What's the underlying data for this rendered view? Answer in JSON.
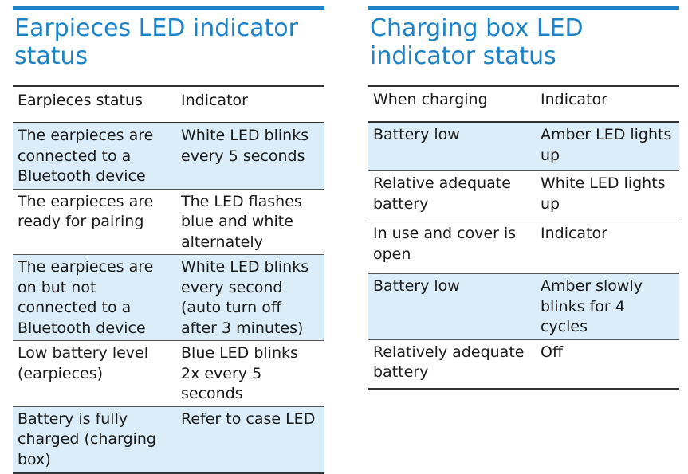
{
  "earpieces": {
    "title_line1": "Earpieces LED indicator",
    "title_line2": "status",
    "headers": [
      "Earpieces status",
      "Indicator"
    ],
    "rows": [
      {
        "status": "The earpieces are connected to a Bluetooth device",
        "indicator": "White LED blinks every 5 seconds"
      },
      {
        "status": "The earpieces are ready for pairing",
        "indicator": "The LED flashes blue and white alternately"
      },
      {
        "status": "The earpieces are on but not connected to a Bluetooth device",
        "indicator": "White LED blinks every second (auto turn off after 3 minutes)"
      },
      {
        "status": "Low battery level (earpieces)",
        "indicator": "Blue LED blinks 2x every 5 seconds"
      },
      {
        "status": "Battery is fully charged (charging box)",
        "indicator": "Refer to case LED"
      }
    ]
  },
  "charging_box": {
    "title_line1": "Charging box LED",
    "title_line2": "indicator status",
    "headers": [
      "When charging",
      "Indicator"
    ],
    "rows": [
      {
        "status": "Battery low",
        "indicator": "Amber LED lights up"
      },
      {
        "status": "Relative adequate battery",
        "indicator": "White LED lights up"
      },
      {
        "status": "In use and cover is open",
        "indicator": "Indicator"
      },
      {
        "status": "Battery low",
        "indicator": "Amber slowly blinks for 4 cycles"
      },
      {
        "status": "Relatively adequate battery",
        "indicator": "Off"
      }
    ]
  }
}
